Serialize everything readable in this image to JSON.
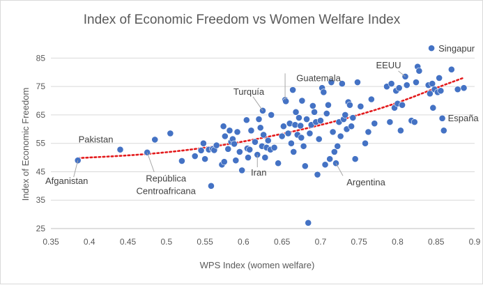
{
  "chart_data": {
    "type": "scatter",
    "title": "Index of Economic Freedom vs Women Welfare Index",
    "xlabel": "WPS Index (women welfare)",
    "ylabel": "Index of Economic Freedom",
    "xlim": [
      0.35,
      0.9
    ],
    "ylim": [
      25,
      90
    ],
    "xticks": [
      0.35,
      0.4,
      0.45,
      0.5,
      0.55,
      0.6,
      0.65,
      0.7,
      0.75,
      0.8,
      0.85,
      0.9
    ],
    "xtick_labels": [
      "0.35",
      "0.4",
      "0.45",
      "0.5",
      "0.55",
      "0.6",
      "0.65",
      "0.7",
      "0.75",
      "0.8",
      "0.85",
      "0.9"
    ],
    "yticks": [
      25,
      35,
      45,
      55,
      65,
      75,
      85
    ],
    "ytick_labels": [
      "25",
      "35",
      "45",
      "55",
      "65",
      "75",
      "85"
    ],
    "grid": "horizontal",
    "colors": {
      "points": "#4472c4",
      "trendline": "#e31a1c"
    },
    "trendline": {
      "type": "polynomial",
      "x": [
        0.385,
        0.45,
        0.5,
        0.55,
        0.6,
        0.65,
        0.7,
        0.75,
        0.8,
        0.85,
        0.885
      ],
      "y": [
        49.8,
        50.7,
        51.8,
        53.4,
        55.6,
        58.3,
        61.4,
        65.0,
        69.2,
        74.5,
        78.0
      ]
    },
    "points": [
      [
        0.385,
        49.0
      ],
      [
        0.44,
        52.8
      ],
      [
        0.475,
        51.8
      ],
      [
        0.485,
        56.3
      ],
      [
        0.505,
        58.5
      ],
      [
        0.52,
        48.8
      ],
      [
        0.537,
        50.5
      ],
      [
        0.545,
        52.5
      ],
      [
        0.548,
        55.0
      ],
      [
        0.55,
        49.5
      ],
      [
        0.555,
        52.8
      ],
      [
        0.558,
        40.0
      ],
      [
        0.56,
        53.0
      ],
      [
        0.562,
        52.6
      ],
      [
        0.565,
        54.3
      ],
      [
        0.572,
        47.5
      ],
      [
        0.574,
        61.0
      ],
      [
        0.575,
        48.5
      ],
      [
        0.576,
        57.5
      ],
      [
        0.58,
        53.0
      ],
      [
        0.582,
        59.5
      ],
      [
        0.584,
        55.5
      ],
      [
        0.586,
        56.5
      ],
      [
        0.588,
        54.8
      ],
      [
        0.59,
        49.0
      ],
      [
        0.592,
        59.0
      ],
      [
        0.595,
        52.0
      ],
      [
        0.598,
        45.5
      ],
      [
        0.604,
        63.2
      ],
      [
        0.605,
        53.2
      ],
      [
        0.606,
        50.0
      ],
      [
        0.608,
        52.8
      ],
      [
        0.61,
        59.5
      ],
      [
        0.615,
        55.5
      ],
      [
        0.618,
        51.0
      ],
      [
        0.62,
        63.5
      ],
      [
        0.622,
        60.5
      ],
      [
        0.624,
        54.0
      ],
      [
        0.625,
        66.5
      ],
      [
        0.626,
        58.0
      ],
      [
        0.628,
        50.0
      ],
      [
        0.63,
        53.5
      ],
      [
        0.632,
        56.0
      ],
      [
        0.635,
        52.8
      ],
      [
        0.636,
        65.0
      ],
      [
        0.64,
        53.5
      ],
      [
        0.645,
        48.0
      ],
      [
        0.65,
        57.5
      ],
      [
        0.652,
        61.0
      ],
      [
        0.654,
        70.3
      ],
      [
        0.655,
        69.8
      ],
      [
        0.658,
        58.5
      ],
      [
        0.66,
        62.0
      ],
      [
        0.662,
        55.0
      ],
      [
        0.664,
        73.8
      ],
      [
        0.665,
        52.0
      ],
      [
        0.667,
        61.5
      ],
      [
        0.668,
        66.0
      ],
      [
        0.67,
        58.0
      ],
      [
        0.672,
        64.0
      ],
      [
        0.674,
        61.2
      ],
      [
        0.675,
        57.0
      ],
      [
        0.676,
        70.0
      ],
      [
        0.678,
        54.0
      ],
      [
        0.68,
        47.0
      ],
      [
        0.682,
        63.5
      ],
      [
        0.684,
        27.0
      ],
      [
        0.686,
        58.5
      ],
      [
        0.688,
        61.5
      ],
      [
        0.69,
        68.2
      ],
      [
        0.692,
        66.0
      ],
      [
        0.694,
        62.5
      ],
      [
        0.696,
        44.0
      ],
      [
        0.698,
        56.5
      ],
      [
        0.7,
        63.0
      ],
      [
        0.702,
        74.5
      ],
      [
        0.704,
        73.0
      ],
      [
        0.706,
        47.5
      ],
      [
        0.708,
        65.5
      ],
      [
        0.71,
        68.5
      ],
      [
        0.712,
        49.5
      ],
      [
        0.714,
        76.5
      ],
      [
        0.716,
        59.0
      ],
      [
        0.718,
        52.0
      ],
      [
        0.72,
        48.0
      ],
      [
        0.722,
        54.0
      ],
      [
        0.724,
        62.5
      ],
      [
        0.726,
        57.5
      ],
      [
        0.728,
        76.0
      ],
      [
        0.73,
        63.5
      ],
      [
        0.732,
        65.0
      ],
      [
        0.734,
        60.0
      ],
      [
        0.736,
        69.5
      ],
      [
        0.738,
        68.5
      ],
      [
        0.74,
        61.0
      ],
      [
        0.742,
        64.0
      ],
      [
        0.745,
        49.5
      ],
      [
        0.748,
        76.5
      ],
      [
        0.752,
        68.0
      ],
      [
        0.758,
        55.0
      ],
      [
        0.762,
        59.0
      ],
      [
        0.766,
        70.5
      ],
      [
        0.77,
        62.0
      ],
      [
        0.786,
        75.0
      ],
      [
        0.79,
        62.5
      ],
      [
        0.792,
        76.0
      ],
      [
        0.796,
        67.5
      ],
      [
        0.798,
        73.5
      ],
      [
        0.8,
        69.0
      ],
      [
        0.802,
        74.5
      ],
      [
        0.804,
        59.5
      ],
      [
        0.806,
        68.5
      ],
      [
        0.81,
        78.5
      ],
      [
        0.812,
        75.5
      ],
      [
        0.818,
        63.0
      ],
      [
        0.822,
        62.5
      ],
      [
        0.824,
        76.5
      ],
      [
        0.826,
        82.0
      ],
      [
        0.828,
        80.5
      ],
      [
        0.84,
        75.5
      ],
      [
        0.842,
        72.5
      ],
      [
        0.844,
        88.5
      ],
      [
        0.845,
        76.0
      ],
      [
        0.846,
        67.5
      ],
      [
        0.848,
        74.0
      ],
      [
        0.852,
        73.0
      ],
      [
        0.854,
        78.0
      ],
      [
        0.856,
        73.5
      ],
      [
        0.858,
        63.8
      ],
      [
        0.86,
        59.5
      ],
      [
        0.87,
        81.0
      ],
      [
        0.878,
        74.0
      ],
      [
        0.886,
        74.5
      ]
    ],
    "annotations": [
      {
        "text": "Singapur",
        "x": 0.844,
        "y": 88.5,
        "leader": false
      },
      {
        "text": "EEUU",
        "x": 0.81,
        "y": 78.5,
        "leader": true
      },
      {
        "text": "Guatemala",
        "x": 0.654,
        "y": 70.3,
        "leader": true
      },
      {
        "text": "Turquía",
        "x": 0.625,
        "y": 66.5,
        "leader": true
      },
      {
        "text": "España",
        "x": 0.858,
        "y": 63.8,
        "leader": false
      },
      {
        "text": "Pakistan",
        "x": 0.44,
        "y": 52.8,
        "leader": false
      },
      {
        "text": "Iran",
        "x": 0.618,
        "y": 51.0,
        "leader": true
      },
      {
        "text": "Argentina",
        "x": 0.72,
        "y": 48.0,
        "leader": true
      },
      {
        "text": "República",
        "x": 0.475,
        "y": 51.8,
        "leader": true
      },
      {
        "text": "Centroafricana",
        "x": 0.475,
        "y": 51.8,
        "leader": false
      },
      {
        "text": "Afganistan",
        "x": 0.385,
        "y": 49.0,
        "leader": true
      }
    ]
  }
}
